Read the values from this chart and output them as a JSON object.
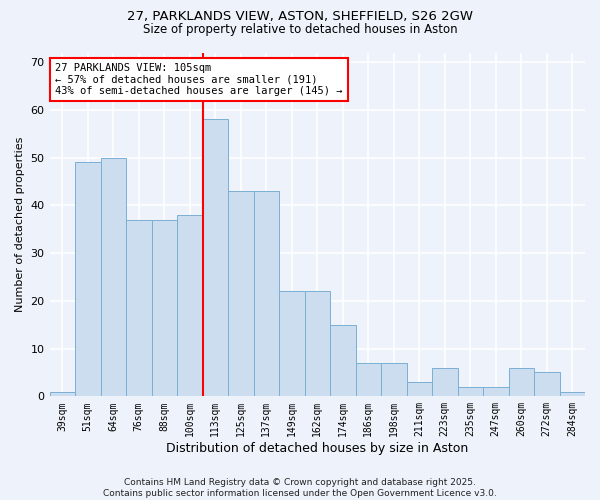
{
  "title_line1": "27, PARKLANDS VIEW, ASTON, SHEFFIELD, S26 2GW",
  "title_line2": "Size of property relative to detached houses in Aston",
  "xlabel": "Distribution of detached houses by size in Aston",
  "ylabel": "Number of detached properties",
  "categories": [
    "39sqm",
    "51sqm",
    "64sqm",
    "76sqm",
    "88sqm",
    "100sqm",
    "113sqm",
    "125sqm",
    "137sqm",
    "149sqm",
    "162sqm",
    "174sqm",
    "186sqm",
    "198sqm",
    "211sqm",
    "223sqm",
    "235sqm",
    "247sqm",
    "260sqm",
    "272sqm",
    "284sqm"
  ],
  "bar_vals": [
    1,
    49,
    50,
    37,
    37,
    38,
    58,
    43,
    43,
    22,
    22,
    15,
    7,
    7,
    3,
    6,
    2,
    2,
    6,
    5,
    1
  ],
  "bar_color": "#ccddf0",
  "bar_edge_color": "#7aafd4",
  "vline_color": "red",
  "vline_pos": 6,
  "annotation_title": "27 PARKLANDS VIEW: 105sqm",
  "annotation_line2": "← 57% of detached houses are smaller (191)",
  "annotation_line3": "43% of semi-detached houses are larger (145) →",
  "ylim": [
    0,
    72
  ],
  "yticks": [
    0,
    10,
    20,
    30,
    40,
    50,
    60,
    70
  ],
  "footer": "Contains HM Land Registry data © Crown copyright and database right 2025.\nContains public sector information licensed under the Open Government Licence v3.0.",
  "bg_color": "#eef2fa",
  "grid_color": "#ffffff"
}
